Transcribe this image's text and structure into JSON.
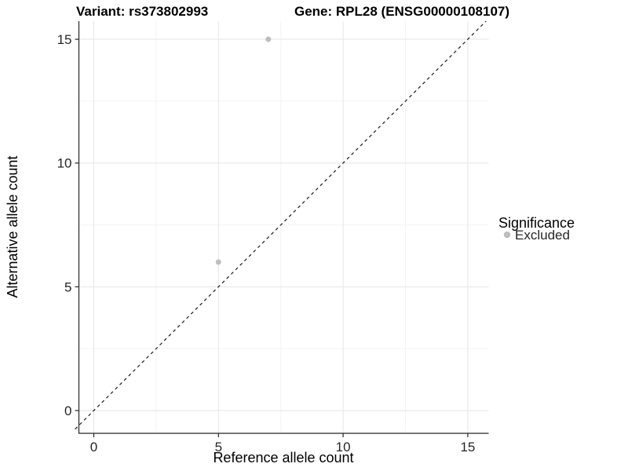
{
  "titles": {
    "variant": "Variant: rs373802993",
    "gene": "Gene: RPL28 (ENSG00000108107)"
  },
  "axes": {
    "x_label": "Reference allele count",
    "y_label": "Alternative allele count"
  },
  "legend": {
    "title": "Significance",
    "items": [
      {
        "label": "Excluded",
        "color": "#bebebe"
      }
    ]
  },
  "colors": {
    "point": "#bebebe",
    "grid_major": "#e6e6e6",
    "grid_minor": "#f3f3f3",
    "axis": "#262626",
    "reference_line": "#1a1a1a",
    "background": "#ffffff"
  },
  "chart_data": {
    "type": "scatter",
    "title": "Variant: rs373802993 | Gene: RPL28 (ENSG00000108107)",
    "xlabel": "Reference allele count",
    "ylabel": "Alternative allele count",
    "xlim": [
      -0.75,
      15.8
    ],
    "ylim": [
      -0.9,
      15.75
    ],
    "x_ticks": [
      0,
      5,
      10,
      15
    ],
    "y_ticks": [
      0,
      5,
      10,
      15
    ],
    "minor_gridlines": [
      2.5,
      7.5,
      12.5
    ],
    "grid": true,
    "legend_position": "right",
    "series": [
      {
        "name": "Excluded",
        "color": "#bebebe",
        "points": [
          {
            "x": 7,
            "y": 15
          },
          {
            "x": 5,
            "y": 6
          }
        ]
      }
    ],
    "reference_line": {
      "type": "identity",
      "slope": 1,
      "intercept": 0,
      "style": "dashed",
      "color": "#1a1a1a"
    }
  }
}
